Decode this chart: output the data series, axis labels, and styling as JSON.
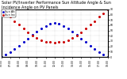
{
  "title": "Solar PV/Inverter Performance Sun Altitude Angle & Sun Incidence Angle on PV Panels",
  "legend_labels": [
    "Sun Alt",
    "Sun Inc"
  ],
  "x_values": [
    6,
    6.5,
    7,
    7.5,
    8,
    8.5,
    9,
    9.5,
    10,
    10.5,
    11,
    11.5,
    12,
    12.5,
    13,
    13.5,
    14,
    14.5,
    15,
    15.5,
    16,
    16.5,
    17,
    17.5,
    18
  ],
  "sun_altitude": [
    0,
    4,
    9,
    15,
    21,
    28,
    35,
    42,
    48,
    54,
    59,
    63,
    65,
    63,
    59,
    54,
    48,
    42,
    35,
    28,
    21,
    15,
    9,
    4,
    0
  ],
  "sun_incidence": [
    90,
    83,
    76,
    68,
    61,
    54,
    47,
    41,
    36,
    32,
    29,
    28,
    27,
    28,
    29,
    32,
    36,
    41,
    47,
    54,
    61,
    68,
    76,
    83,
    90
  ],
  "blue_color": "#0000cc",
  "red_color": "#cc0000",
  "bg_color": "#ffffff",
  "ylim": [
    0,
    90
  ],
  "xlim": [
    6,
    18
  ],
  "xtick_positions": [
    6,
    7,
    8,
    9,
    10,
    11,
    12,
    13,
    14,
    15,
    16,
    17,
    18
  ],
  "xtick_labels": [
    "06:00",
    "07:00",
    "08:00",
    "09:00",
    "10:00",
    "11:00",
    "12:00",
    "13:00",
    "14:00",
    "15:00",
    "16:00",
    "17:00",
    "18:00"
  ],
  "ytick_positions": [
    0,
    10,
    20,
    30,
    40,
    50,
    60,
    70,
    80,
    90
  ],
  "ytick_labels": [
    "0",
    "10",
    "20",
    "30",
    "40",
    "50",
    "60",
    "70",
    "80",
    "90"
  ],
  "title_fontsize": 3.5,
  "tick_fontsize": 2.2,
  "legend_fontsize": 2.5,
  "marker_size": 1.2
}
